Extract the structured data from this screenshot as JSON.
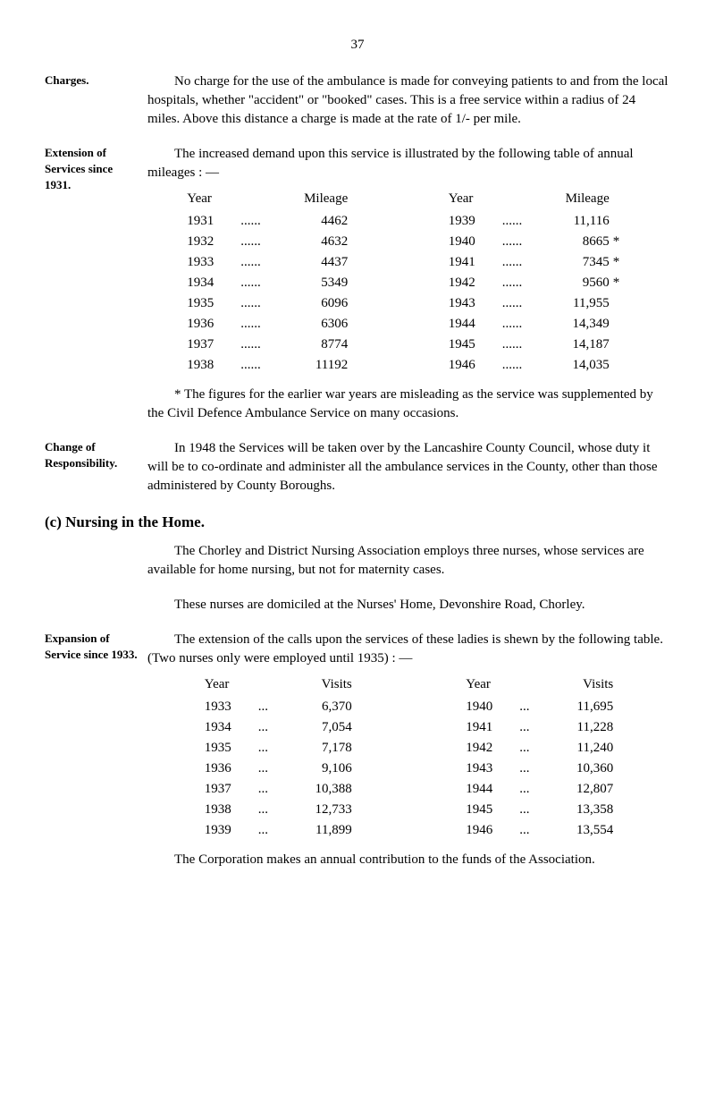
{
  "page_number": "37",
  "charges": {
    "label": "Charges.",
    "text": "No charge for the use of the ambulance is made for conveying patients to and from the local hospitals, whether \"accident\" or \"booked\" cases. This is a free service within a radius of 24 miles. Above this distance a charge is made at the rate of 1/- per mile."
  },
  "extension": {
    "label": "Extension of Services since 1931.",
    "intro": "The increased demand upon this service is illustrated by the following table of annual mileages : —",
    "header_year": "Year",
    "header_mileage": "Mileage",
    "left_rows": [
      {
        "year": "1931",
        "dots": "......",
        "mileage": "4462",
        "note": ""
      },
      {
        "year": "1932",
        "dots": "......",
        "mileage": "4632",
        "note": ""
      },
      {
        "year": "1933",
        "dots": "......",
        "mileage": "4437",
        "note": ""
      },
      {
        "year": "1934",
        "dots": "......",
        "mileage": "5349",
        "note": ""
      },
      {
        "year": "1935",
        "dots": "......",
        "mileage": "6096",
        "note": ""
      },
      {
        "year": "1936",
        "dots": "......",
        "mileage": "6306",
        "note": ""
      },
      {
        "year": "1937",
        "dots": "......",
        "mileage": "8774",
        "note": ""
      },
      {
        "year": "1938",
        "dots": "......",
        "mileage": "11192",
        "note": ""
      }
    ],
    "right_rows": [
      {
        "year": "1939",
        "dots": "......",
        "mileage": "11,116",
        "note": ""
      },
      {
        "year": "1940",
        "dots": "......",
        "mileage": "8665",
        "note": "*"
      },
      {
        "year": "1941",
        "dots": "......",
        "mileage": "7345",
        "note": "*"
      },
      {
        "year": "1942",
        "dots": "......",
        "mileage": "9560",
        "note": "*"
      },
      {
        "year": "1943",
        "dots": "......",
        "mileage": "11,955",
        "note": ""
      },
      {
        "year": "1944",
        "dots": "......",
        "mileage": "14,349",
        "note": ""
      },
      {
        "year": "1945",
        "dots": "......",
        "mileage": "14,187",
        "note": ""
      },
      {
        "year": "1946",
        "dots": "......",
        "mileage": "14,035",
        "note": ""
      }
    ],
    "footnote": "* The figures for the earlier war years are misleading as the service was supplemented by the Civil Defence Ambulance Service on many occasions."
  },
  "change": {
    "label": "Change of Responsibility.",
    "text": "In 1948 the Services will be taken over by the Lancashire County Council, whose duty it will be to co-ordinate and administer all the ambulance services in the County, other than those administered by County Boroughs."
  },
  "nursing_heading": "(c) Nursing in the Home.",
  "nursing": {
    "para1": "The Chorley and District Nursing Association employs three nurses, whose services are available for home nursing, but not for maternity cases.",
    "para2": "These nurses are domiciled at the Nurses' Home, Devonshire Road, Chorley."
  },
  "expansion": {
    "label": "Expansion of Service since 1933.",
    "intro": "The extension of the calls upon the services of these ladies is shewn by the following table. (Two nurses only were employed until 1935) : —",
    "header_year": "Year",
    "header_visits": "Visits",
    "left_rows": [
      {
        "year": "1933",
        "dots": "...",
        "visits": "6,370"
      },
      {
        "year": "1934",
        "dots": "...",
        "visits": "7,054"
      },
      {
        "year": "1935",
        "dots": "...",
        "visits": "7,178"
      },
      {
        "year": "1936",
        "dots": "...",
        "visits": "9,106"
      },
      {
        "year": "1937",
        "dots": "...",
        "visits": "10,388"
      },
      {
        "year": "1938",
        "dots": "...",
        "visits": "12,733"
      },
      {
        "year": "1939",
        "dots": "...",
        "visits": "11,899"
      }
    ],
    "right_rows": [
      {
        "year": "1940",
        "dots": "...",
        "visits": "11,695"
      },
      {
        "year": "1941",
        "dots": "...",
        "visits": "11,228"
      },
      {
        "year": "1942",
        "dots": "...",
        "visits": "11,240"
      },
      {
        "year": "1943",
        "dots": "...",
        "visits": "10,360"
      },
      {
        "year": "1944",
        "dots": "...",
        "visits": "12,807"
      },
      {
        "year": "1945",
        "dots": "...",
        "visits": "13,358"
      },
      {
        "year": "1946",
        "dots": "...",
        "visits": "13,554"
      }
    ],
    "closing": "The Corporation makes an annual contribution to the funds of the Association."
  }
}
